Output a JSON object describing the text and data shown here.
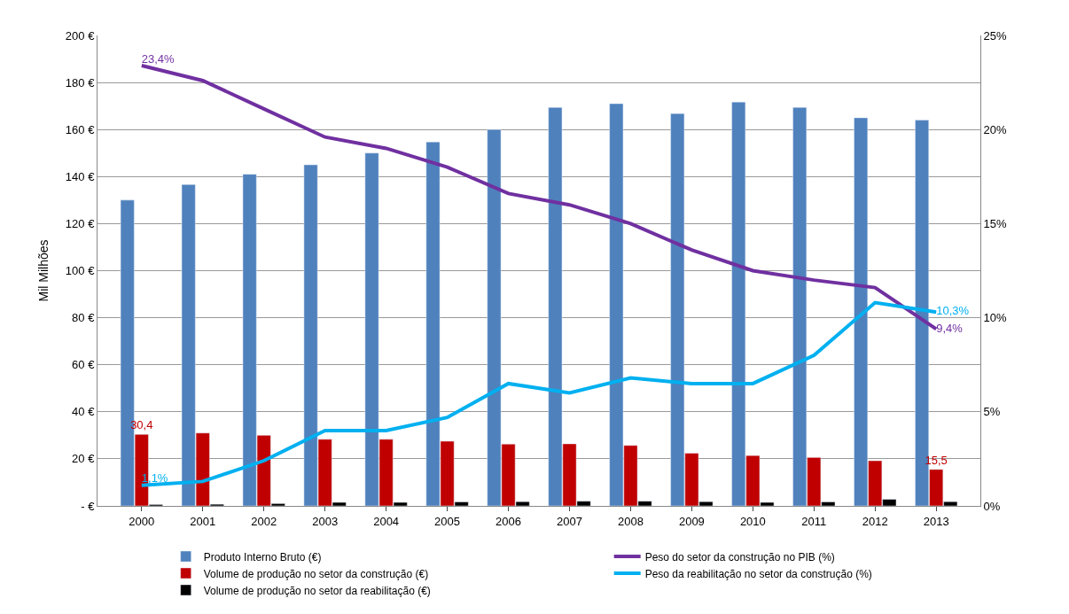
{
  "chart_data": {
    "type": "bar",
    "ylabel": "Mil Milhões",
    "categories": [
      "2000",
      "2001",
      "2002",
      "2003",
      "2004",
      "2005",
      "2006",
      "2007",
      "2008",
      "2009",
      "2010",
      "2011",
      "2012",
      "2013"
    ],
    "series": [
      {
        "name": "Produto Interno Bruto (€)",
        "color": "#4f81bd",
        "values": [
          130,
          136.6,
          141,
          145,
          150,
          154.7,
          160,
          169.4,
          171,
          166.8,
          171.7,
          169.4,
          165,
          164
        ]
      },
      {
        "name": "Volume de produção no setor da construção (€)",
        "color": "#c00000",
        "values": [
          30.4,
          31,
          30,
          28.3,
          28.3,
          27.5,
          26.3,
          26.4,
          25.7,
          22.4,
          21.4,
          20.6,
          19.2,
          15.5
        ],
        "value_labels": [
          "30,4",
          null,
          null,
          null,
          null,
          null,
          null,
          null,
          null,
          null,
          null,
          null,
          null,
          "15,5"
        ]
      },
      {
        "name": "Volume de produção no setor da reabilitação (€)",
        "color": "#000000",
        "values": [
          0.6,
          0.7,
          1,
          1.5,
          1.5,
          1.7,
          1.8,
          2,
          2,
          1.8,
          1.5,
          1.7,
          2.8,
          1.8
        ]
      },
      {
        "name": "Peso do setor da construção no PIB (%)",
        "type": "line",
        "axis": "y2",
        "color": "#7030a0",
        "values": [
          23.4,
          22.6,
          21.1,
          19.6,
          19.0,
          18.0,
          16.6,
          16.0,
          15.0,
          13.6,
          12.5,
          12.0,
          11.6,
          9.4
        ],
        "value_labels": [
          "23,4%",
          null,
          null,
          null,
          null,
          null,
          null,
          null,
          null,
          null,
          null,
          null,
          null,
          "9,4%"
        ]
      },
      {
        "name": "Peso da reabilitação no setor da construção (%)",
        "type": "line",
        "axis": "y2",
        "color": "#00b0f0",
        "values": [
          1.1,
          1.3,
          2.4,
          4.0,
          4.0,
          4.7,
          6.5,
          6.0,
          6.8,
          6.5,
          6.5,
          8.0,
          10.8,
          10.3
        ],
        "value_labels": [
          "1,1%",
          null,
          null,
          null,
          null,
          null,
          null,
          null,
          null,
          null,
          null,
          null,
          null,
          "10,3%"
        ]
      }
    ],
    "ylim": [
      0,
      200
    ],
    "yticks": [
      {
        "value": 0,
        "label": "- €"
      },
      {
        "value": 20,
        "label": "20 €"
      },
      {
        "value": 40,
        "label": "40 €"
      },
      {
        "value": 60,
        "label": "60 €"
      },
      {
        "value": 80,
        "label": "80 €"
      },
      {
        "value": 100,
        "label": "100 €"
      },
      {
        "value": 120,
        "label": "120 €"
      },
      {
        "value": 140,
        "label": "140 €"
      },
      {
        "value": 160,
        "label": "160 €"
      },
      {
        "value": 180,
        "label": "180 €"
      },
      {
        "value": 200,
        "label": "200 €"
      }
    ],
    "y2lim": [
      0,
      25
    ],
    "y2ticks": [
      {
        "value": 0,
        "label": "0%"
      },
      {
        "value": 5,
        "label": "5%"
      },
      {
        "value": 10,
        "label": "10%"
      },
      {
        "value": 15,
        "label": "15%"
      },
      {
        "value": 20,
        "label": "20%"
      },
      {
        "value": 25,
        "label": "25%"
      }
    ],
    "grid": "y",
    "legend": "bottom",
    "marker": "none",
    "line_style": "solid"
  }
}
